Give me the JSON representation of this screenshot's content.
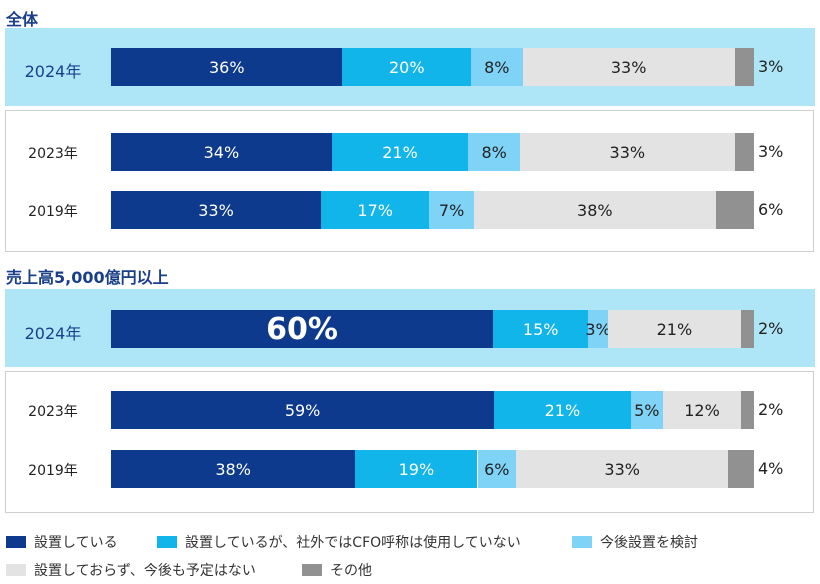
{
  "chart_data": [
    {
      "type": "bar",
      "orientation": "horizontal-stacked-100",
      "title": "全体",
      "categories": [
        "2024年",
        "2023年",
        "2019年"
      ],
      "series": [
        {
          "name": "設置している",
          "values": [
            36,
            34,
            33
          ]
        },
        {
          "name": "設置しているが、社外ではCFO呼称は使用していない",
          "values": [
            20,
            21,
            17
          ]
        },
        {
          "name": "今後設置を検討",
          "values": [
            8,
            8,
            7
          ]
        },
        {
          "name": "設置しておらず、今後も予定はない",
          "values": [
            33,
            33,
            38
          ]
        },
        {
          "name": "その他",
          "values": [
            3,
            3,
            6
          ]
        }
      ],
      "labels": [
        [
          "36%",
          "20%",
          "8%",
          "33%",
          "3%"
        ],
        [
          "34%",
          "21%",
          "8%",
          "33%",
          "3%"
        ],
        [
          "33%",
          "17%",
          "7%",
          "38%",
          "6%"
        ]
      ]
    },
    {
      "type": "bar",
      "orientation": "horizontal-stacked-100",
      "title": "売上高5,000億円以上",
      "categories": [
        "2024年",
        "2023年",
        "2019年"
      ],
      "series": [
        {
          "name": "設置している",
          "values": [
            60,
            59,
            38
          ]
        },
        {
          "name": "設置しているが、社外ではCFO呼称は使用していない",
          "values": [
            15,
            21,
            19
          ]
        },
        {
          "name": "今後設置を検討",
          "values": [
            3,
            5,
            6
          ]
        },
        {
          "name": "設置しておらず、今後も予定はない",
          "values": [
            21,
            12,
            33
          ]
        },
        {
          "name": "その他",
          "values": [
            2,
            2,
            4
          ]
        }
      ],
      "labels": [
        [
          "60%",
          "15%",
          "3%",
          "21%",
          "2%"
        ],
        [
          "59%",
          "21%",
          "5%",
          "12%",
          "2%"
        ],
        [
          "38%",
          "19%",
          "6%",
          "33%",
          "4%"
        ]
      ]
    }
  ],
  "legend": [
    {
      "label": "設置している",
      "color": "#0d3a8c"
    },
    {
      "label": "設置しているが、社外ではCFO呼称は使用していない",
      "color": "#12b5ea"
    },
    {
      "label": "今後設置を検討",
      "color": "#7fd3f7"
    },
    {
      "label": "設置しておらず、今後も予定はない",
      "color": "#e3e3e3"
    },
    {
      "label": "その他",
      "color": "#919191"
    }
  ]
}
